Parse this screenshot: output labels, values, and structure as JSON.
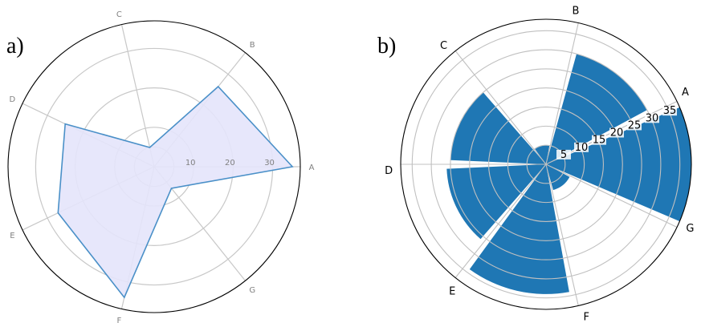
{
  "chart_data": [
    {
      "type": "radar",
      "panel_label": "a)",
      "categories": [
        "A",
        "B",
        "C",
        "D",
        "E",
        "F",
        "G"
      ],
      "values": [
        35,
        26,
        5,
        25,
        27,
        34,
        7
      ],
      "rticks": [
        "10",
        "20",
        "30"
      ],
      "rlim": [
        0,
        37
      ],
      "grid": true,
      "colors": {
        "line": "#4a90c8",
        "fill": "#e4e4fb",
        "grid": "#c8c8c8",
        "spine": "#000000"
      }
    },
    {
      "type": "bar",
      "subtype": "polar",
      "panel_label": "b)",
      "categories": [
        "A",
        "B",
        "C",
        "D",
        "E",
        "F",
        "G"
      ],
      "values": [
        38,
        30,
        5,
        25,
        26,
        34,
        7
      ],
      "rticks": [
        "5",
        "10",
        "15",
        "20",
        "25",
        "30",
        "35"
      ],
      "rlim": [
        0,
        38
      ],
      "grid": true,
      "colors": {
        "bar": "#1f77b4",
        "grid": "#c0c0c0",
        "spine": "#000000"
      }
    }
  ]
}
